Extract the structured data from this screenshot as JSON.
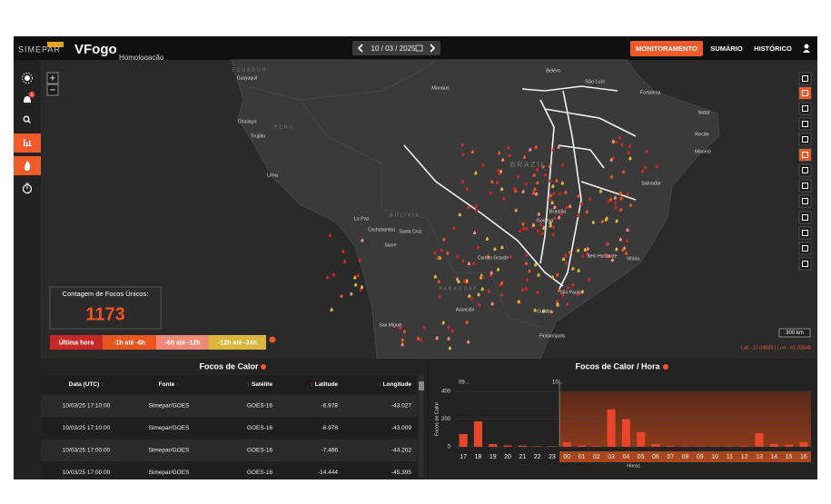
{
  "header": {
    "logo": "SIMEPAR",
    "app": "VFogo",
    "environment": "Homologação",
    "date": "10 / 03 / 2025",
    "nav": [
      "MONITORAMENTO",
      "SUMÁRIO",
      "HISTÓRICO"
    ]
  },
  "sidebar": {
    "badge": "5"
  },
  "map": {
    "zoom": [
      "+",
      "−"
    ],
    "labels": [
      "ECUADOR",
      "Guayaquil",
      "Belém",
      "São Luís",
      "Manaus",
      "Fortaleza",
      "Natal",
      "Chiclayo",
      "PERU",
      "Trujillo",
      "Recife",
      "Maceió",
      "BRAZIL",
      "Lima",
      "Salvador",
      "Brasília",
      "La Paz",
      "BOLIVIA",
      "Goiânia",
      "Cochabamba",
      "Santa Cruz",
      "Sucre",
      "Campo Grande",
      "Belo Horizonte",
      "Vitória",
      "PARAGUAY",
      "São Paulo",
      "Asunción",
      "Curitiba",
      "San Miguel",
      "Florianópolis"
    ],
    "scale": "300 km",
    "coords": "Lat: -17.04685 | Lon: -61.03645"
  },
  "counter": {
    "label": "Contagem de Focos Únicos:",
    "value": 1173
  },
  "legend": [
    {
      "label": "Última hora",
      "color": "#c62828"
    },
    {
      "label": "-1h até -6h",
      "color": "#e8551f"
    },
    {
      "label": "-6h até -12h",
      "color": "#ef8a78"
    },
    {
      "label": "-12h até -24h",
      "color": "#d8b73a"
    }
  ],
  "table": {
    "title": "Focos de Calor",
    "sort_icon": "↑",
    "columns": [
      "Data (UTC)",
      "Fonte",
      "Satélite",
      "Latitude",
      "Longitude"
    ],
    "rows": [
      [
        "10/03/25 17:10:00",
        "Simepar/GOES",
        "GOES-16",
        "-6.978",
        "-43.027"
      ],
      [
        "10/03/25 17:10:00",
        "Simepar/GOES",
        "GOES-16",
        "-6.978",
        "-43.009"
      ],
      [
        "10/03/25 17:00:00",
        "Simepar/GOES",
        "GOES-16",
        "-7.466",
        "-44.202"
      ],
      [
        "10/03/25 17:00:00",
        "Simepar/GOES",
        "GOES-16",
        "-14.444",
        "-45.395"
      ]
    ]
  },
  "chart_data": {
    "type": "bar",
    "title": "Focos de Calor / Hora",
    "y_label": "Focos de Calor",
    "x_label": "Horas",
    "annotations": [
      "09...",
      "10..."
    ],
    "categories": [
      "17",
      "18",
      "19",
      "20",
      "21",
      "22",
      "23",
      "00",
      "01",
      "02",
      "03",
      "04",
      "05",
      "06",
      "07",
      "08",
      "09",
      "10",
      "11",
      "12",
      "13",
      "14",
      "15",
      "16"
    ],
    "values": [
      92,
      184,
      20,
      10,
      8,
      3,
      3,
      33,
      10,
      5,
      270,
      200,
      105,
      20,
      5,
      3,
      3,
      3,
      3,
      5,
      98,
      20,
      15,
      33
    ],
    "color": "#e8452a",
    "ylim": [
      0,
      400
    ],
    "yticks": [
      0,
      200,
      400
    ],
    "grid": true
  }
}
